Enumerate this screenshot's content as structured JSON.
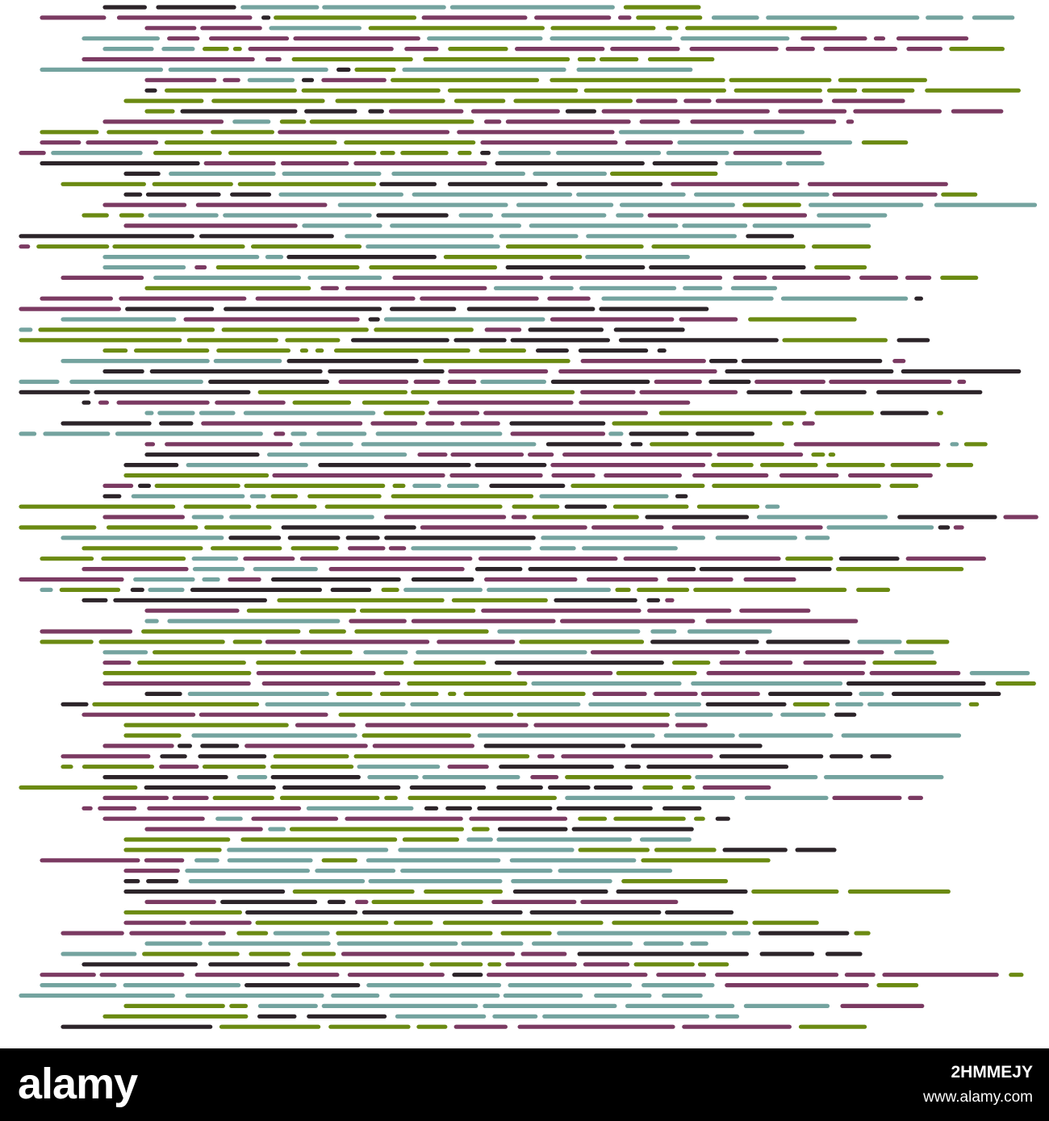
{
  "image": {
    "subject": "Horizontal dashed lines pattern",
    "palette": {
      "purple": "#7b3a62",
      "olive": "#6b8a12",
      "teal": "#74a39f",
      "dark": "#2c2429",
      "background": "#ffffff"
    }
  },
  "stock_bar": {
    "logo": "alamy",
    "image_id": "2HMMEJY",
    "url": "www.alamy.com",
    "background": "#000000"
  }
}
